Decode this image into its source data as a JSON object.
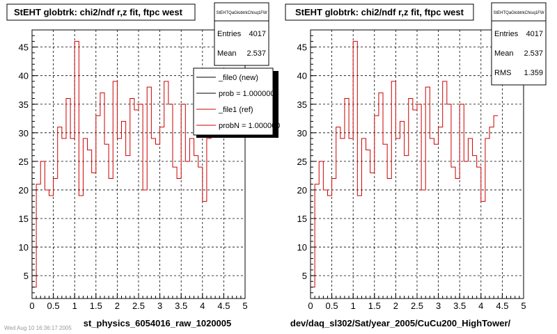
{
  "chart_data": [
    {
      "type": "line",
      "title": "StEHT globtrk: chi2/ndf r,z fit, ftpc west",
      "xlabel": "st_physics_6054016_raw_1020005",
      "ylabel": "",
      "xlim": [
        0,
        5
      ],
      "ylim": [
        1,
        48
      ],
      "xticks": [
        "0",
        "0.5",
        "1",
        "1.5",
        "2",
        "2.5",
        "3",
        "3.5",
        "4",
        "4.5",
        "5"
      ],
      "yticks": [
        "5",
        "10",
        "15",
        "20",
        "25",
        "30",
        "35",
        "40",
        "45"
      ],
      "grid": true,
      "bin_width": 0.1,
      "series": [
        {
          "name": "_file1 (ref)",
          "color": "#cc0000",
          "values": [
            3,
            21,
            25,
            20,
            19,
            22,
            31,
            29,
            36,
            29,
            46,
            19,
            29,
            27,
            23,
            33,
            37,
            28,
            22,
            39,
            29,
            32,
            26,
            36,
            34,
            35,
            20,
            38,
            29,
            28,
            31,
            39,
            35,
            24,
            22,
            35,
            25,
            29,
            26,
            24,
            18,
            29,
            31,
            33
          ]
        }
      ],
      "stats": {
        "name": "StEHTQaGlobtrkChisq1FW",
        "entries_label": "Entries",
        "entries": "4017",
        "mean_label": "Mean",
        "mean": "2.537"
      },
      "legend": {
        "placement": "top-right",
        "entries": [
          {
            "label": "_file0 (new)",
            "color": "#000000"
          },
          {
            "label": "prob = 1.000000",
            "color": "#000000"
          },
          {
            "label": "_file1 (ref)",
            "color": "#cc0000"
          },
          {
            "label": "probN = 1.000000",
            "color": "#cc0000"
          }
        ]
      }
    },
    {
      "type": "line",
      "title": "StEHT globtrk: chi2/ndf r,z fit, ftpc west",
      "xlabel": "dev/daq_sl302/Sat/year_2005/CuCu200_HighTower/",
      "ylabel": "",
      "xlim": [
        0,
        5
      ],
      "ylim": [
        1,
        48
      ],
      "xticks": [
        "0",
        "0.5",
        "1",
        "1.5",
        "2",
        "2.5",
        "3",
        "3.5",
        "4",
        "4.5",
        "5"
      ],
      "yticks": [
        "5",
        "10",
        "15",
        "20",
        "25",
        "30",
        "35",
        "40",
        "45"
      ],
      "grid": true,
      "bin_width": 0.1,
      "series": [
        {
          "color": "#cc0000",
          "values": [
            3,
            21,
            25,
            20,
            19,
            22,
            31,
            29,
            36,
            29,
            46,
            19,
            29,
            27,
            23,
            33,
            37,
            28,
            22,
            39,
            29,
            32,
            26,
            36,
            34,
            35,
            20,
            38,
            29,
            28,
            31,
            39,
            35,
            24,
            22,
            35,
            25,
            29,
            26,
            24,
            18,
            29,
            31,
            33
          ]
        }
      ],
      "stats": {
        "name": "StEHTQaGlobtrkChisq1FW",
        "entries_label": "Entries",
        "entries": "4017",
        "mean_label": "Mean",
        "mean": "2.537",
        "rms_label": "RMS",
        "rms": "1.359"
      }
    }
  ],
  "footer_text": "Wed Aug 10 16:36:17 2005"
}
